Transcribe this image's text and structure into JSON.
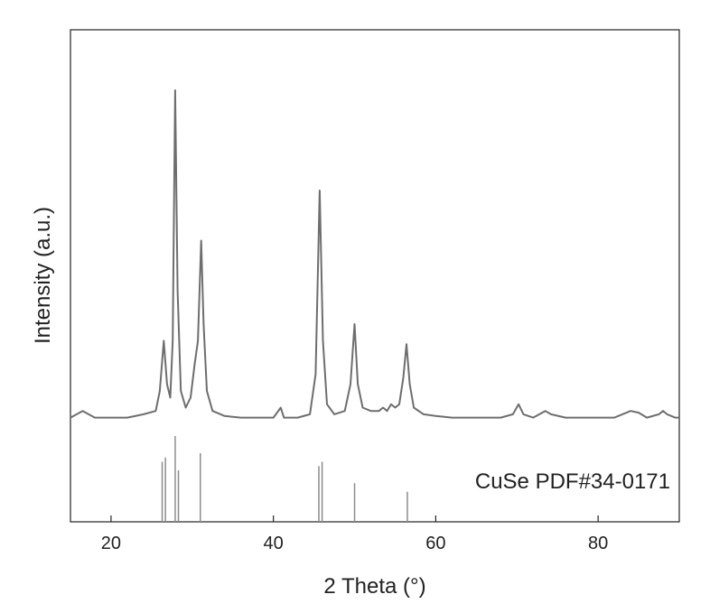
{
  "chart_data": {
    "type": "line",
    "title": "",
    "xlabel": "2 Theta (°)",
    "ylabel": "Intensity (a.u.)",
    "xlim": [
      15,
      90
    ],
    "x_ticks": [
      20,
      40,
      60,
      80
    ],
    "x_tick_labels": [
      "20",
      "40",
      "60",
      "80"
    ],
    "y_ticks_visible": false,
    "grid": false,
    "series": [
      {
        "type": "line",
        "color": "#6e6e6e",
        "points": [
          [
            15,
            0.02
          ],
          [
            16.5,
            0.04
          ],
          [
            18,
            0.02
          ],
          [
            20,
            0.02
          ],
          [
            22,
            0.02
          ],
          [
            24,
            0.03
          ],
          [
            25.5,
            0.04
          ],
          [
            26.0,
            0.1
          ],
          [
            26.5,
            0.25
          ],
          [
            26.9,
            0.12
          ],
          [
            27.3,
            0.08
          ],
          [
            27.6,
            0.25
          ],
          [
            27.9,
            1.0
          ],
          [
            28.2,
            0.4
          ],
          [
            28.6,
            0.1
          ],
          [
            29.2,
            0.05
          ],
          [
            29.8,
            0.08
          ],
          [
            30.3,
            0.18
          ],
          [
            30.7,
            0.25
          ],
          [
            31.1,
            0.55
          ],
          [
            31.4,
            0.3
          ],
          [
            31.8,
            0.1
          ],
          [
            32.5,
            0.04
          ],
          [
            34,
            0.025
          ],
          [
            36,
            0.02
          ],
          [
            38,
            0.02
          ],
          [
            40,
            0.02
          ],
          [
            40.9,
            0.05
          ],
          [
            41.3,
            0.02
          ],
          [
            43,
            0.02
          ],
          [
            44.5,
            0.03
          ],
          [
            45.2,
            0.15
          ],
          [
            45.7,
            0.7
          ],
          [
            46.1,
            0.25
          ],
          [
            46.6,
            0.06
          ],
          [
            47.5,
            0.03
          ],
          [
            48.8,
            0.04
          ],
          [
            49.5,
            0.12
          ],
          [
            50.0,
            0.3
          ],
          [
            50.4,
            0.12
          ],
          [
            51,
            0.05
          ],
          [
            52,
            0.04
          ],
          [
            53,
            0.04
          ],
          [
            53.5,
            0.05
          ],
          [
            54.0,
            0.04
          ],
          [
            54.5,
            0.06
          ],
          [
            55.0,
            0.05
          ],
          [
            55.5,
            0.06
          ],
          [
            56.0,
            0.14
          ],
          [
            56.4,
            0.24
          ],
          [
            56.8,
            0.12
          ],
          [
            57.3,
            0.05
          ],
          [
            58.5,
            0.03
          ],
          [
            60,
            0.025
          ],
          [
            62,
            0.02
          ],
          [
            64,
            0.02
          ],
          [
            66,
            0.02
          ],
          [
            68,
            0.02
          ],
          [
            69.5,
            0.03
          ],
          [
            70.2,
            0.06
          ],
          [
            70.8,
            0.03
          ],
          [
            72,
            0.02
          ],
          [
            73.5,
            0.04
          ],
          [
            74.2,
            0.03
          ],
          [
            76,
            0.02
          ],
          [
            78,
            0.02
          ],
          [
            80,
            0.02
          ],
          [
            82,
            0.02
          ],
          [
            83.5,
            0.035
          ],
          [
            84,
            0.04
          ],
          [
            85,
            0.035
          ],
          [
            86,
            0.02
          ],
          [
            87.5,
            0.03
          ],
          [
            88,
            0.04
          ],
          [
            88.5,
            0.03
          ],
          [
            89.5,
            0.02
          ],
          [
            90,
            0.02
          ]
        ]
      }
    ],
    "reference": {
      "label": "CuSe PDF#34-0171",
      "color": "#8c8c8c",
      "lines": [
        {
          "x": 26.3,
          "intensity": 0.7
        },
        {
          "x": 26.7,
          "intensity": 0.75
        },
        {
          "x": 27.9,
          "intensity": 1.0
        },
        {
          "x": 28.3,
          "intensity": 0.6
        },
        {
          "x": 31.0,
          "intensity": 0.8
        },
        {
          "x": 45.6,
          "intensity": 0.65
        },
        {
          "x": 46.0,
          "intensity": 0.7
        },
        {
          "x": 50.0,
          "intensity": 0.45
        },
        {
          "x": 56.5,
          "intensity": 0.35
        }
      ]
    }
  }
}
